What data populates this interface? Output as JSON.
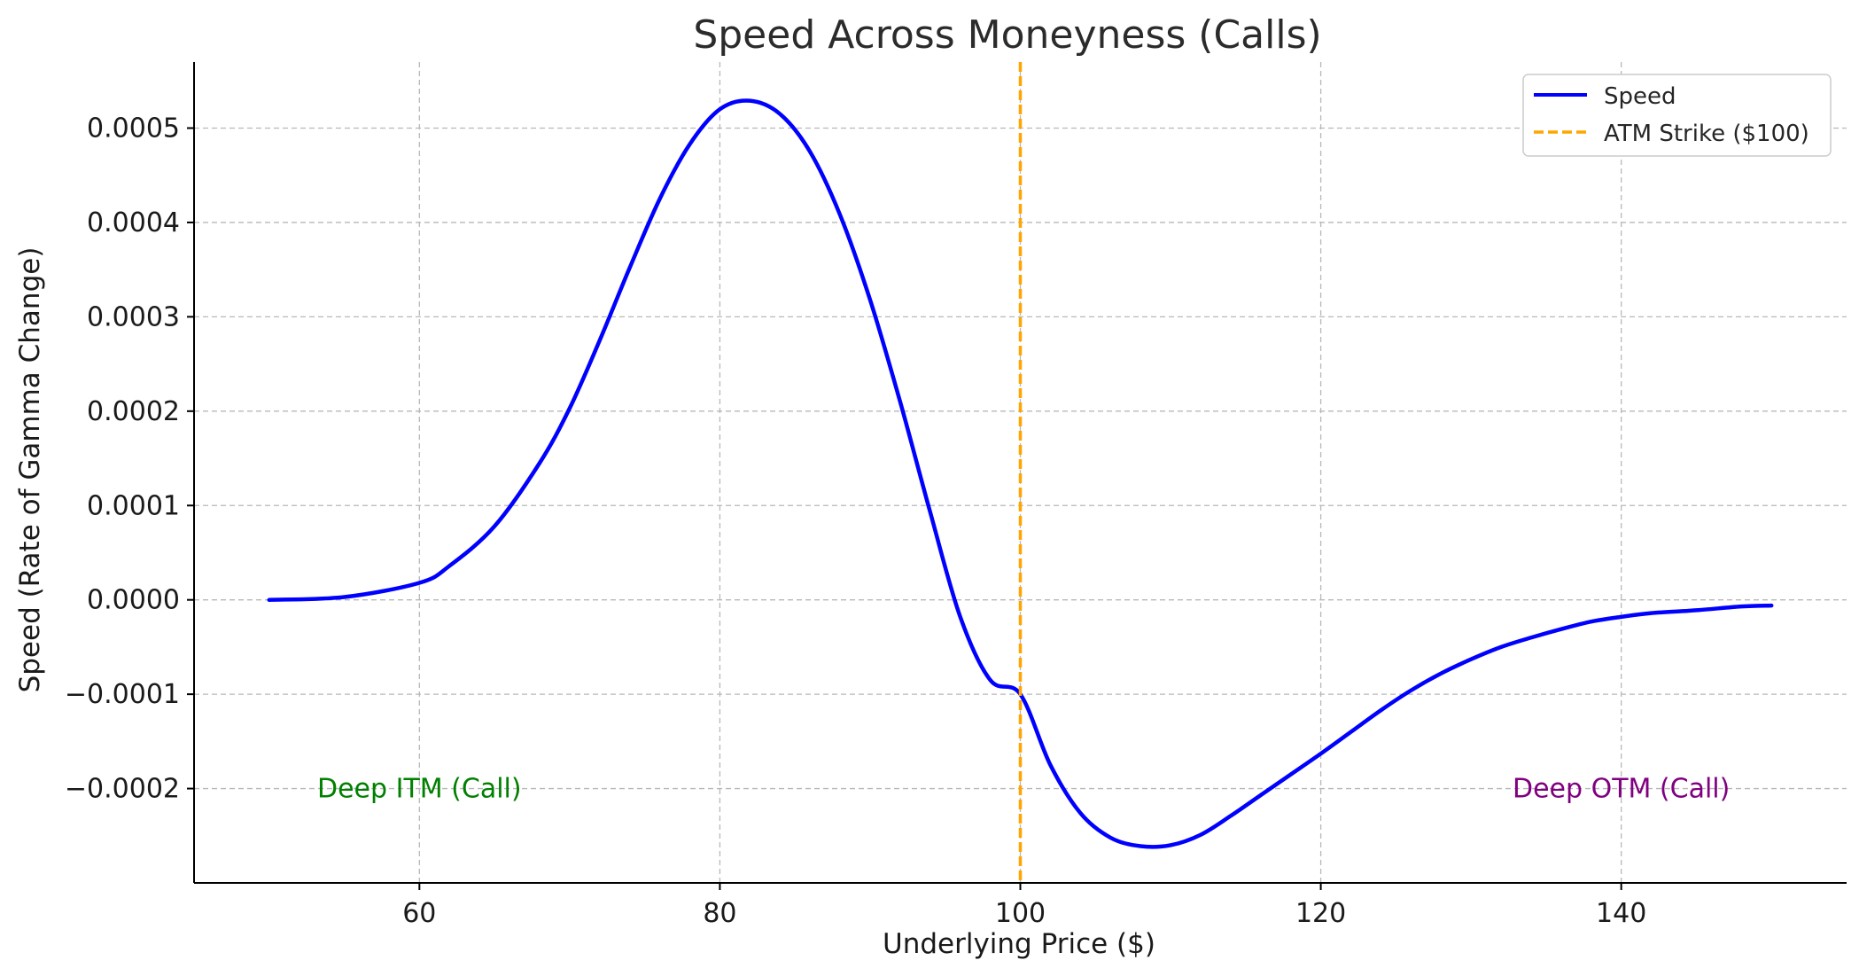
{
  "chart_data": {
    "type": "line",
    "title": "Speed Across Moneyness (Calls)",
    "xlabel": "Underlying Price ($)",
    "ylabel": "Speed (Rate of Gamma Change)",
    "xlim": [
      45,
      155
    ],
    "ylim": [
      -0.0003,
      0.00057
    ],
    "xticks": [
      60,
      80,
      100,
      120,
      140
    ],
    "xtick_labels": [
      "60",
      "80",
      "100",
      "120",
      "140"
    ],
    "yticks": [
      -0.0002,
      -0.0001,
      0.0,
      0.0001,
      0.0002,
      0.0003,
      0.0004,
      0.0005
    ],
    "ytick_labels": [
      "−0.0002",
      "−0.0001",
      "0.0000",
      "0.0001",
      "0.0002",
      "0.0003",
      "0.0004",
      "0.0005"
    ],
    "grid": true,
    "legend_position": "top-right",
    "series": [
      {
        "name": "Speed",
        "color": "#0000ff",
        "x": [
          50,
          55,
          60,
          62,
          65,
          68,
          70,
          72,
          74,
          76,
          78,
          80,
          82,
          84,
          86,
          88,
          90,
          92,
          94,
          96,
          98,
          100,
          102,
          104,
          106,
          108,
          110,
          112,
          114,
          116,
          118,
          120,
          122,
          124,
          126,
          128,
          130,
          132,
          134,
          136,
          138,
          140,
          142,
          145,
          148,
          150
        ],
        "y": [
          0.0,
          3e-06,
          1.8e-05,
          3.6e-05,
          7.8e-05,
          0.000145,
          0.000203,
          0.000275,
          0.000352,
          0.000425,
          0.000483,
          0.00052,
          0.000529,
          0.000515,
          0.000475,
          0.000408,
          0.000318,
          0.00021,
          9.3e-05,
          -1.8e-05,
          -8.5e-05,
          -0.0001,
          -0.000175,
          -0.000226,
          -0.000252,
          -0.000261,
          -0.00026,
          -0.000249,
          -0.000229,
          -0.000207,
          -0.000185,
          -0.000163,
          -0.00014,
          -0.000117,
          -9.6e-05,
          -7.8e-05,
          -6.3e-05,
          -5e-05,
          -4e-05,
          -3.1e-05,
          -2.3e-05,
          -1.8e-05,
          -1.4e-05,
          -1.1e-05,
          -7e-06,
          -6e-06
        ]
      }
    ],
    "vlines": [
      {
        "name": "ATM Strike ($100)",
        "x": 100,
        "color": "#ffa500",
        "style": "dashed"
      }
    ],
    "annotations": [
      {
        "text": "Deep ITM (Call)",
        "x": 60,
        "y": -0.0002,
        "color": "#008000"
      },
      {
        "text": "Deep OTM (Call)",
        "x": 140,
        "y": -0.0002,
        "color": "#800080"
      }
    ]
  }
}
